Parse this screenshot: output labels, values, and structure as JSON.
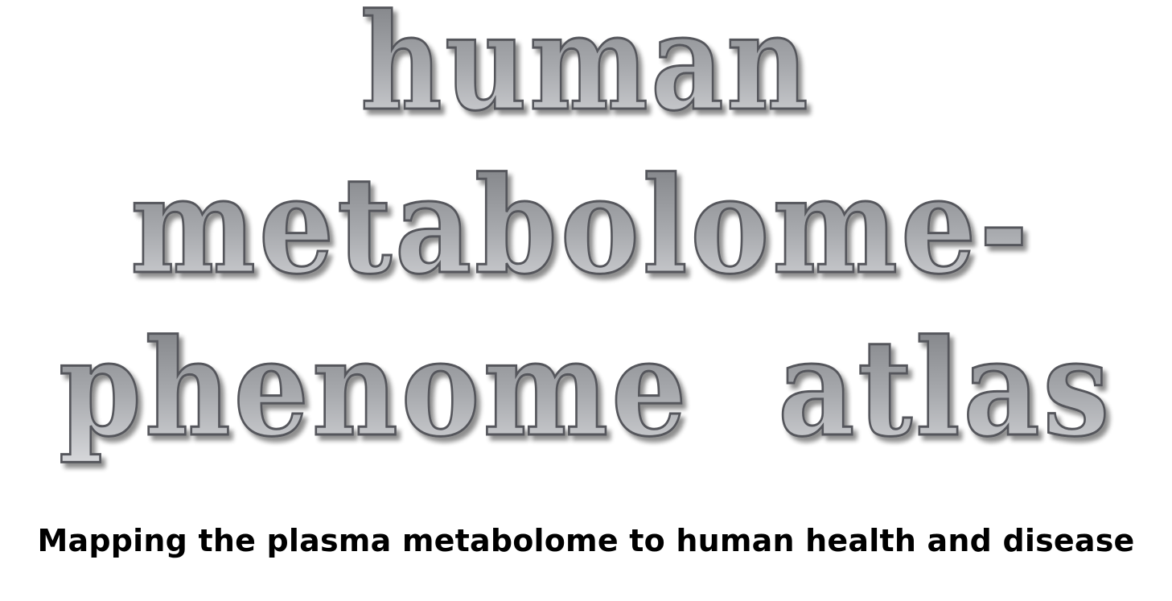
{
  "title": {
    "lines": [
      "human",
      "metabolome-",
      "phenome  atlas"
    ],
    "fill_top": "#7a7c80",
    "fill_bottom": "#d9dadd",
    "stroke": "#55575b"
  },
  "subtitle": "Mapping the plasma metabolome to human health and disease"
}
